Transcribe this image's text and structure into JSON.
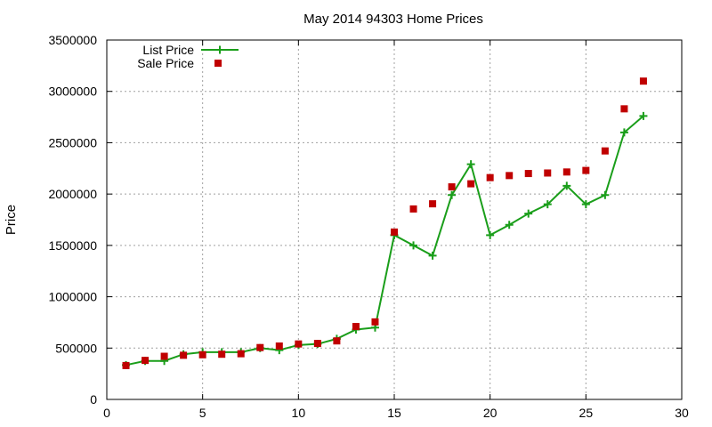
{
  "chart_data": {
    "type": "line",
    "title": "May 2014 94303 Home Prices",
    "xlabel": "",
    "ylabel": "Price",
    "xlim": [
      0,
      30
    ],
    "ylim": [
      0,
      3500000
    ],
    "xticks": [
      0,
      5,
      10,
      15,
      20,
      25,
      30
    ],
    "yticks": [
      0,
      500000,
      1000000,
      1500000,
      2000000,
      2500000,
      3000000,
      3500000
    ],
    "xtick_labels": [
      "0",
      "5",
      "10",
      "15",
      "20",
      "25",
      "30"
    ],
    "ytick_labels": [
      "0",
      "500000",
      "1000000",
      "1500000",
      "2000000",
      "2500000",
      "3000000",
      "3500000"
    ],
    "grid": true,
    "legend_position": "top-left",
    "series": [
      {
        "name": "List Price",
        "style": "line-plus",
        "color": "#1a9e1a",
        "x": [
          1,
          2,
          3,
          4,
          5,
          6,
          7,
          8,
          9,
          10,
          11,
          12,
          13,
          14,
          15,
          16,
          17,
          18,
          19,
          20,
          21,
          22,
          23,
          24,
          25,
          26,
          27,
          28
        ],
        "y": [
          335000,
          375000,
          375000,
          440000,
          460000,
          460000,
          460000,
          500000,
          480000,
          530000,
          540000,
          590000,
          680000,
          700000,
          1600000,
          1500000,
          1400000,
          1990000,
          2290000,
          1600000,
          1700000,
          1810000,
          1900000,
          2080000,
          1900000,
          1990000,
          2600000,
          2760000
        ]
      },
      {
        "name": "Sale Price",
        "style": "square",
        "color": "#c00000",
        "x": [
          1,
          2,
          3,
          4,
          5,
          6,
          7,
          8,
          9,
          10,
          11,
          12,
          13,
          14,
          15,
          16,
          17,
          18,
          19,
          20,
          21,
          22,
          23,
          24,
          25,
          26,
          27,
          28
        ],
        "y": [
          330000,
          380000,
          420000,
          430000,
          435000,
          440000,
          445000,
          505000,
          520000,
          540000,
          545000,
          570000,
          710000,
          755000,
          1630000,
          1855000,
          1905000,
          2070000,
          2100000,
          2160000,
          2180000,
          2200000,
          2205000,
          2215000,
          2230000,
          2420000,
          2830000,
          3100000
        ]
      }
    ]
  }
}
